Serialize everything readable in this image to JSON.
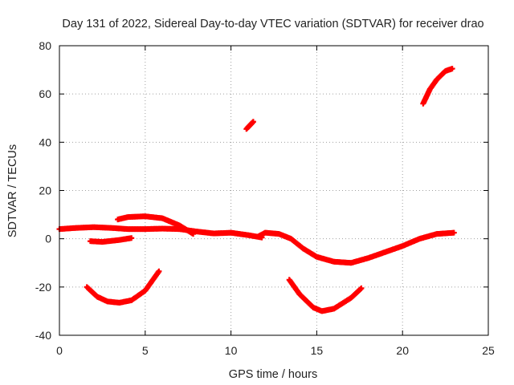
{
  "chart_data": {
    "type": "scatter",
    "title": "Day 131 of 2022, Sidereal Day-to-day VTEC variation (SDTVAR) for receiver drao",
    "xlabel": "GPS time / hours",
    "ylabel": "SDTVAR / TECUs",
    "xlim": [
      0,
      25
    ],
    "ylim": [
      -40,
      80
    ],
    "xticks": [
      0,
      5,
      10,
      15,
      20,
      25
    ],
    "yticks": [
      -40,
      -20,
      0,
      20,
      40,
      60,
      80
    ],
    "grid": true,
    "legend": "none",
    "series_color": "#ff0000",
    "series": [
      {
        "name": "main-band-1",
        "points": [
          [
            0.0,
            4.0
          ],
          [
            1.0,
            4.5
          ],
          [
            2.0,
            4.8
          ],
          [
            3.0,
            4.5
          ],
          [
            4.0,
            4.0
          ],
          [
            5.0,
            4.0
          ],
          [
            6.0,
            4.2
          ],
          [
            7.0,
            4.0
          ],
          [
            8.0,
            3.0
          ],
          [
            9.0,
            2.2
          ],
          [
            10.0,
            2.5
          ],
          [
            11.0,
            1.5
          ],
          [
            11.8,
            0.5
          ]
        ]
      },
      {
        "name": "main-band-2",
        "points": [
          [
            11.6,
            1.0
          ],
          [
            12.0,
            2.5
          ],
          [
            12.8,
            2.0
          ],
          [
            13.5,
            0.0
          ],
          [
            14.2,
            -4.0
          ],
          [
            15.0,
            -7.5
          ],
          [
            16.0,
            -9.5
          ],
          [
            17.0,
            -10.0
          ],
          [
            18.0,
            -8.0
          ],
          [
            19.0,
            -5.5
          ],
          [
            20.0,
            -3.0
          ],
          [
            21.0,
            0.0
          ],
          [
            22.0,
            2.0
          ],
          [
            23.0,
            2.5
          ]
        ]
      },
      {
        "name": "upper-arc",
        "points": [
          [
            3.4,
            8.0
          ],
          [
            4.0,
            9.0
          ],
          [
            5.0,
            9.3
          ],
          [
            6.0,
            8.5
          ],
          [
            7.0,
            5.5
          ],
          [
            7.8,
            2.0
          ]
        ]
      },
      {
        "name": "low-segment",
        "points": [
          [
            1.8,
            -1.0
          ],
          [
            2.5,
            -1.3
          ],
          [
            3.5,
            -0.5
          ],
          [
            4.2,
            0.3
          ]
        ]
      },
      {
        "name": "lower-arc-1",
        "points": [
          [
            1.6,
            -20.0
          ],
          [
            2.2,
            -24.0
          ],
          [
            2.8,
            -26.0
          ],
          [
            3.5,
            -26.5
          ],
          [
            4.2,
            -25.5
          ],
          [
            5.0,
            -21.5
          ],
          [
            5.8,
            -13.5
          ]
        ]
      },
      {
        "name": "lower-arc-2",
        "points": [
          [
            13.4,
            -17.0
          ],
          [
            14.0,
            -23.0
          ],
          [
            14.8,
            -28.5
          ],
          [
            15.3,
            -30.0
          ],
          [
            16.0,
            -29.0
          ],
          [
            17.0,
            -24.5
          ],
          [
            17.6,
            -20.5
          ]
        ]
      },
      {
        "name": "short-high",
        "points": [
          [
            10.9,
            45.5
          ],
          [
            11.3,
            48.5
          ]
        ]
      },
      {
        "name": "upper-right-arc",
        "points": [
          [
            21.2,
            56.0
          ],
          [
            21.6,
            62.0
          ],
          [
            22.0,
            66.0
          ],
          [
            22.5,
            69.5
          ],
          [
            22.9,
            70.5
          ]
        ]
      }
    ]
  }
}
